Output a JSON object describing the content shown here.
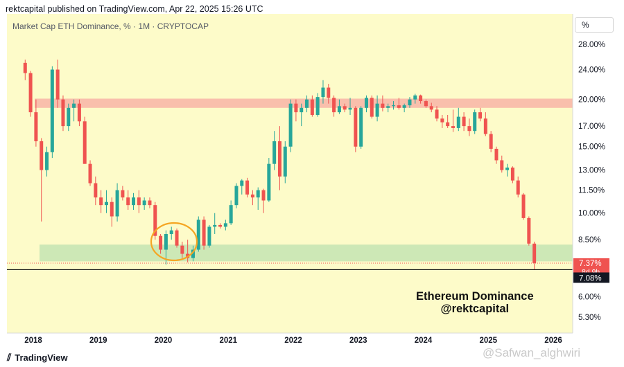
{
  "header": {
    "publisher_line": "rektcapital published on TradingView.com, Apr 22, 2025 15:26 UTC"
  },
  "chart_meta": {
    "subtitle": "Market Cap ETH Dominance, % · 1M · CRYPTOCAP",
    "scale_label": "%"
  },
  "annotation": {
    "line1": "Ethereum Dominance",
    "line2": "@rektcapital"
  },
  "footer": {
    "logo_text": "TradingView",
    "handle": "@Safwan_alghwiri"
  },
  "price_tags": {
    "current_value": "7.37%",
    "countdown": "8d 9h",
    "line_value": "7.08%"
  },
  "colors": {
    "up": "#26a69a",
    "down": "#ef5350",
    "resistance_zone": "#f8b8a8",
    "support_zone": "#c8e6b4",
    "background": "#fdfbc9",
    "highlight_circle": "#f5a623"
  },
  "icons": {
    "logo": "tradingview-logo-icon"
  },
  "chart_data": {
    "type": "candlestick",
    "scale": "log",
    "y_ticks": [
      "28.00%",
      "24.00%",
      "20.00%",
      "17.00%",
      "15.00%",
      "13.00%",
      "11.50%",
      "10.00%",
      "8.50%",
      "6.00%",
      "5.30%"
    ],
    "x_ticks": [
      "2018",
      "2019",
      "2020",
      "2021",
      "2022",
      "2023",
      "2024",
      "2025",
      "2026"
    ],
    "zones": [
      {
        "name": "resistance",
        "low": 19.0,
        "high": 20.1
      },
      {
        "name": "support",
        "low": 7.45,
        "high": 8.25
      }
    ],
    "horizontal_line": 7.08,
    "candles_start": "2017-11",
    "candles": [
      [
        25.0,
        25.5,
        22.5,
        23.5
      ],
      [
        23.5,
        23.8,
        18.0,
        18.5
      ],
      [
        18.5,
        20.0,
        15.0,
        15.5
      ],
      [
        15.5,
        15.8,
        9.5,
        13.0
      ],
      [
        13.0,
        15.0,
        12.5,
        14.5
      ],
      [
        14.5,
        24.5,
        14.0,
        24.0
      ],
      [
        24.0,
        25.5,
        19.0,
        20.0
      ],
      [
        20.0,
        20.5,
        16.5,
        17.0
      ],
      [
        17.0,
        19.5,
        16.5,
        19.0
      ],
      [
        19.0,
        20.0,
        17.5,
        19.5
      ],
      [
        19.5,
        20.0,
        17.0,
        17.5
      ],
      [
        17.5,
        18.0,
        13.5,
        13.5
      ],
      [
        13.5,
        13.8,
        11.8,
        12.0
      ],
      [
        12.0,
        12.5,
        10.5,
        11.0
      ],
      [
        11.0,
        11.5,
        10.0,
        10.5
      ],
      [
        10.5,
        11.5,
        10.0,
        10.7
      ],
      [
        10.7,
        11.0,
        9.2,
        9.8
      ],
      [
        9.8,
        12.0,
        9.5,
        11.5
      ],
      [
        11.5,
        11.8,
        10.8,
        11.0
      ],
      [
        11.0,
        11.5,
        10.2,
        10.5
      ],
      [
        10.5,
        11.3,
        10.2,
        11.0
      ],
      [
        11.0,
        11.5,
        10.0,
        10.5
      ],
      [
        10.5,
        11.0,
        10.2,
        10.8
      ],
      [
        10.8,
        11.0,
        10.3,
        10.5
      ],
      [
        10.5,
        10.7,
        8.5,
        8.7
      ],
      [
        8.7,
        8.8,
        7.8,
        8.0
      ],
      [
        8.0,
        9.0,
        7.3,
        8.8
      ],
      [
        8.8,
        9.2,
        8.5,
        9.0
      ],
      [
        9.0,
        9.1,
        8.1,
        8.2
      ],
      [
        8.2,
        8.4,
        7.6,
        7.8
      ],
      [
        7.8,
        8.5,
        7.4,
        7.6
      ],
      [
        7.6,
        8.2,
        7.45,
        8.0
      ],
      [
        8.0,
        9.8,
        7.9,
        9.6
      ],
      [
        9.6,
        9.8,
        8.0,
        8.2
      ],
      [
        8.2,
        9.3,
        8.1,
        9.2
      ],
      [
        9.2,
        10.0,
        8.8,
        9.3
      ],
      [
        9.3,
        9.4,
        9.1,
        9.2
      ],
      [
        9.2,
        9.6,
        9.0,
        9.4
      ],
      [
        9.4,
        10.8,
        9.3,
        10.5
      ],
      [
        10.5,
        12.0,
        10.3,
        11.8
      ],
      [
        11.8,
        12.3,
        11.2,
        12.2
      ],
      [
        12.2,
        12.4,
        11.0,
        11.2
      ],
      [
        11.2,
        11.5,
        10.5,
        11.0
      ],
      [
        11.0,
        11.7,
        10.2,
        11.5
      ],
      [
        11.5,
        11.6,
        10.0,
        10.8
      ],
      [
        10.8,
        14.0,
        10.7,
        13.5
      ],
      [
        13.5,
        16.5,
        13.0,
        15.5
      ],
      [
        15.5,
        17.0,
        11.5,
        12.5
      ],
      [
        12.5,
        15.5,
        12.0,
        15.0
      ],
      [
        15.0,
        20.0,
        14.5,
        19.5
      ],
      [
        19.5,
        20.0,
        17.5,
        18.5
      ],
      [
        18.5,
        19.5,
        17.0,
        19.0
      ],
      [
        19.0,
        20.5,
        18.5,
        20.0
      ],
      [
        20.0,
        20.5,
        18.0,
        18.2
      ],
      [
        18.2,
        20.8,
        18.0,
        20.3
      ],
      [
        20.3,
        22.5,
        19.5,
        21.5
      ],
      [
        21.5,
        22.0,
        19.5,
        20.2
      ],
      [
        20.2,
        20.5,
        18.0,
        18.5
      ],
      [
        18.5,
        20.0,
        18.3,
        19.2
      ],
      [
        19.2,
        19.5,
        18.5,
        18.8
      ],
      [
        18.8,
        20.2,
        18.2,
        19.0
      ],
      [
        19.0,
        19.2,
        14.5,
        15.0
      ],
      [
        15.0,
        19.2,
        14.8,
        19.0
      ],
      [
        19.0,
        20.5,
        18.5,
        20.2
      ],
      [
        20.2,
        20.5,
        17.8,
        18.0
      ],
      [
        18.0,
        20.5,
        17.5,
        19.5
      ],
      [
        19.5,
        20.5,
        18.6,
        19.0
      ],
      [
        19.0,
        19.5,
        18.5,
        19.2
      ],
      [
        19.2,
        19.8,
        18.8,
        19.3
      ],
      [
        19.3,
        20.2,
        18.8,
        19.0
      ],
      [
        19.0,
        19.5,
        18.5,
        19.3
      ],
      [
        19.3,
        20.3,
        19.0,
        20.0
      ],
      [
        20.0,
        20.7,
        19.5,
        20.5
      ],
      [
        20.5,
        20.6,
        19.5,
        19.8
      ],
      [
        19.8,
        20.0,
        19.0,
        19.2
      ],
      [
        19.2,
        19.6,
        18.5,
        18.8
      ],
      [
        18.8,
        19.2,
        17.5,
        17.8
      ],
      [
        17.8,
        18.2,
        16.8,
        17.4
      ],
      [
        17.4,
        18.2,
        16.8,
        17.0
      ],
      [
        17.0,
        18.8,
        16.4,
        16.8
      ],
      [
        16.8,
        19.0,
        16.5,
        18.0
      ],
      [
        18.0,
        18.5,
        16.5,
        17.0
      ],
      [
        17.0,
        17.8,
        16.0,
        16.5
      ],
      [
        16.5,
        18.8,
        16.2,
        18.5
      ],
      [
        18.5,
        19.0,
        17.5,
        17.8
      ],
      [
        17.8,
        18.5,
        16.0,
        16.2
      ],
      [
        16.2,
        16.5,
        14.5,
        14.8
      ],
      [
        14.8,
        15.0,
        13.5,
        13.8
      ],
      [
        13.8,
        14.2,
        12.8,
        13.0
      ],
      [
        13.0,
        13.5,
        12.5,
        13.2
      ],
      [
        13.2,
        13.3,
        12.0,
        12.2
      ],
      [
        12.2,
        12.5,
        11.0,
        11.2
      ],
      [
        11.2,
        11.3,
        9.6,
        9.7
      ],
      [
        9.7,
        9.8,
        8.2,
        8.3
      ],
      [
        8.3,
        8.4,
        7.1,
        7.37
      ]
    ]
  }
}
